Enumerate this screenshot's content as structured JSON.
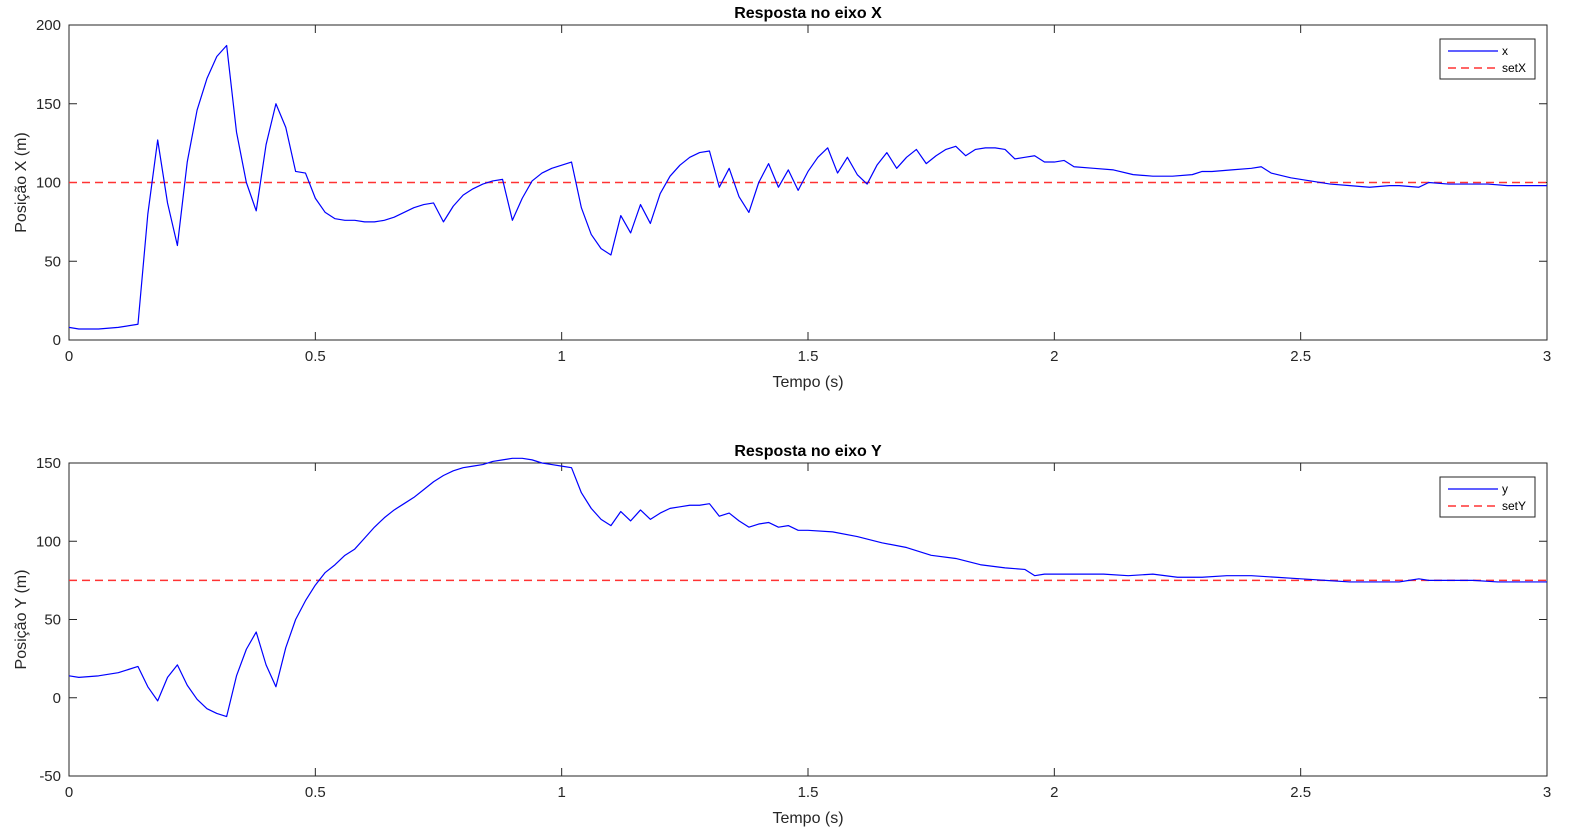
{
  "colors": {
    "signal": "#0000ff",
    "setpoint": "#ff3333",
    "axis": "#262626",
    "grid": "#c8c8c8"
  },
  "chart_data": [
    {
      "type": "line",
      "title": "Resposta no eixo X",
      "xlabel": "Tempo (s)",
      "ylabel": "Posição X (m)",
      "xlim": [
        0,
        3
      ],
      "ylim": [
        0,
        200
      ],
      "xticks": [
        0,
        0.5,
        1,
        1.5,
        2,
        2.5,
        3
      ],
      "xtick_labels": [
        "0",
        "0.5",
        "1",
        "1.5",
        "2",
        "2.5",
        "3"
      ],
      "yticks": [
        0,
        50,
        100,
        150,
        200
      ],
      "ytick_labels": [
        "0",
        "50",
        "100",
        "150",
        "200"
      ],
      "grid": false,
      "legend": "top-right",
      "series": [
        {
          "name": "x",
          "style": "solid",
          "x": [
            0,
            0.02,
            0.06,
            0.1,
            0.14,
            0.16,
            0.18,
            0.2,
            0.22,
            0.24,
            0.26,
            0.28,
            0.3,
            0.32,
            0.34,
            0.36,
            0.38,
            0.4,
            0.42,
            0.44,
            0.46,
            0.48,
            0.5,
            0.52,
            0.54,
            0.56,
            0.58,
            0.6,
            0.62,
            0.64,
            0.66,
            0.68,
            0.7,
            0.72,
            0.74,
            0.76,
            0.78,
            0.8,
            0.82,
            0.84,
            0.86,
            0.88,
            0.9,
            0.92,
            0.94,
            0.96,
            0.98,
            1.0,
            1.02,
            1.04,
            1.06,
            1.08,
            1.1,
            1.12,
            1.14,
            1.16,
            1.18,
            1.2,
            1.22,
            1.24,
            1.26,
            1.28,
            1.3,
            1.32,
            1.34,
            1.36,
            1.38,
            1.4,
            1.42,
            1.44,
            1.46,
            1.48,
            1.5,
            1.52,
            1.54,
            1.56,
            1.58,
            1.6,
            1.62,
            1.64,
            1.66,
            1.68,
            1.7,
            1.72,
            1.74,
            1.76,
            1.78,
            1.8,
            1.82,
            1.84,
            1.86,
            1.88,
            1.9,
            1.92,
            1.94,
            1.96,
            1.98,
            2.0,
            2.02,
            2.04,
            2.08,
            2.12,
            2.16,
            2.2,
            2.24,
            2.28,
            2.3,
            2.32,
            2.36,
            2.4,
            2.42,
            2.44,
            2.48,
            2.52,
            2.56,
            2.6,
            2.64,
            2.68,
            2.7,
            2.74,
            2.76,
            2.8,
            2.84,
            2.88,
            2.92,
            2.96,
            3.0
          ],
          "y": [
            8,
            7,
            7,
            8,
            10,
            80,
            127,
            87,
            60,
            113,
            146,
            166,
            180,
            187,
            132,
            100,
            82,
            124,
            150,
            135,
            107,
            106,
            90,
            81,
            77,
            76,
            76,
            75,
            75,
            76,
            78,
            81,
            84,
            86,
            87,
            75,
            85,
            92,
            96,
            99,
            101,
            102,
            76,
            90,
            101,
            106,
            109,
            111,
            113,
            84,
            67,
            58,
            54,
            79,
            68,
            86,
            74,
            93,
            104,
            111,
            116,
            119,
            120,
            97,
            109,
            91,
            81,
            100,
            112,
            97,
            108,
            95,
            107,
            116,
            122,
            106,
            116,
            105,
            99,
            111,
            119,
            109,
            116,
            121,
            112,
            117,
            121,
            123,
            117,
            121,
            122,
            122,
            121,
            115,
            116,
            117,
            113,
            113,
            114,
            110,
            109,
            108,
            105,
            104,
            104,
            105,
            107,
            107,
            108,
            109,
            110,
            106,
            103,
            101,
            99,
            98,
            97,
            98,
            98,
            97,
            100,
            99,
            99,
            99,
            98,
            98,
            98
          ]
        },
        {
          "name": "setX",
          "style": "dashed",
          "x": [
            0,
            3
          ],
          "y": [
            100,
            100
          ]
        }
      ]
    },
    {
      "type": "line",
      "title": "Resposta no eixo Y",
      "xlabel": "Tempo (s)",
      "ylabel": "Posição Y (m)",
      "xlim": [
        0,
        3
      ],
      "ylim": [
        -50,
        150
      ],
      "xticks": [
        0,
        0.5,
        1,
        1.5,
        2,
        2.5,
        3
      ],
      "xtick_labels": [
        "0",
        "0.5",
        "1",
        "1.5",
        "2",
        "2.5",
        "3"
      ],
      "yticks": [
        -50,
        0,
        50,
        100,
        150
      ],
      "ytick_labels": [
        "-50",
        "0",
        "50",
        "100",
        "150"
      ],
      "grid": false,
      "legend": "top-right",
      "series": [
        {
          "name": "y",
          "style": "solid",
          "x": [
            0,
            0.02,
            0.06,
            0.1,
            0.14,
            0.16,
            0.18,
            0.2,
            0.22,
            0.24,
            0.26,
            0.28,
            0.3,
            0.32,
            0.34,
            0.36,
            0.38,
            0.4,
            0.42,
            0.44,
            0.46,
            0.48,
            0.5,
            0.52,
            0.54,
            0.56,
            0.58,
            0.6,
            0.62,
            0.64,
            0.66,
            0.68,
            0.7,
            0.72,
            0.74,
            0.76,
            0.78,
            0.8,
            0.82,
            0.84,
            0.86,
            0.88,
            0.9,
            0.92,
            0.94,
            0.96,
            0.98,
            1.0,
            1.02,
            1.04,
            1.06,
            1.08,
            1.1,
            1.12,
            1.14,
            1.16,
            1.18,
            1.2,
            1.22,
            1.24,
            1.26,
            1.28,
            1.3,
            1.32,
            1.34,
            1.36,
            1.38,
            1.4,
            1.42,
            1.44,
            1.46,
            1.48,
            1.5,
            1.55,
            1.6,
            1.65,
            1.7,
            1.75,
            1.8,
            1.85,
            1.9,
            1.94,
            1.96,
            1.98,
            2.0,
            2.05,
            2.1,
            2.15,
            2.2,
            2.25,
            2.3,
            2.35,
            2.4,
            2.45,
            2.5,
            2.55,
            2.6,
            2.65,
            2.7,
            2.72,
            2.74,
            2.76,
            2.8,
            2.85,
            2.9,
            2.95,
            3.0
          ],
          "y": [
            14,
            13,
            14,
            16,
            20,
            7,
            -2,
            13,
            21,
            8,
            -1,
            -7,
            -10,
            -12,
            14,
            31,
            42,
            21,
            7,
            32,
            50,
            62,
            72,
            80,
            85,
            91,
            95,
            102,
            109,
            115,
            120,
            124,
            128,
            133,
            138,
            142,
            145,
            147,
            148,
            149,
            151,
            152,
            153,
            153,
            152,
            150,
            149,
            148,
            147,
            131,
            121,
            114,
            110,
            119,
            113,
            120,
            114,
            118,
            121,
            122,
            123,
            123,
            124,
            116,
            118,
            113,
            109,
            111,
            112,
            109,
            110,
            107,
            107,
            106,
            103,
            99,
            96,
            91,
            89,
            85,
            83,
            82,
            78,
            79,
            79,
            79,
            79,
            78,
            79,
            77,
            77,
            78,
            78,
            77,
            76,
            75,
            74,
            74,
            74,
            75,
            76,
            75,
            75,
            75,
            74,
            74,
            74
          ]
        },
        {
          "name": "setY",
          "style": "dashed",
          "x": [
            0,
            3
          ],
          "y": [
            75,
            75
          ]
        }
      ]
    }
  ]
}
